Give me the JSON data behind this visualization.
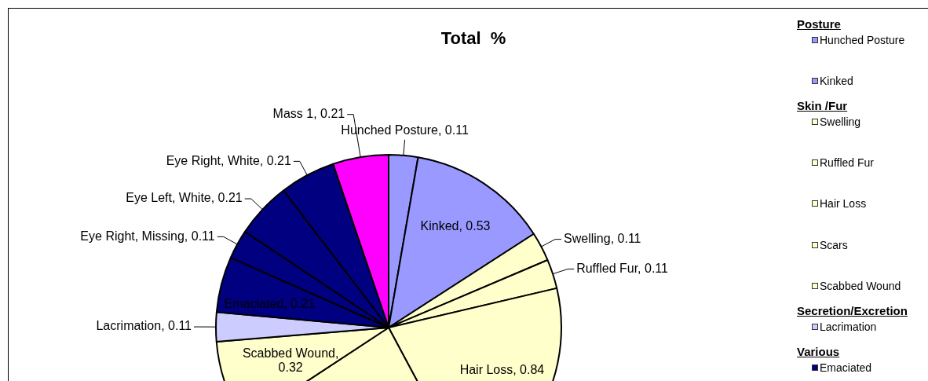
{
  "chart_data": {
    "type": "pie",
    "title": "Total  %",
    "categories": [
      "Hunched Posture",
      "Kinked",
      "Swelling",
      "Ruffled Fur",
      "Hair Loss",
      "Scars",
      "Scabbed Wound",
      "Lacrimation",
      "Emaciated",
      "Eye Right, Missing",
      "Eye Left, White",
      "Eye Right, White",
      "Mass 1"
    ],
    "values": [
      0.11,
      0.53,
      0.11,
      0.11,
      0.84,
      0.95,
      0.32,
      0.11,
      0.21,
      0.11,
      0.21,
      0.21,
      0.21
    ],
    "colors": [
      "#9999ff",
      "#9999ff",
      "#ffffcc",
      "#ffffcc",
      "#ffffcc",
      "#ffffcc",
      "#ffffcc",
      "#ccccff",
      "#000080",
      "#000080",
      "#000080",
      "#000080",
      "#ff00ff"
    ],
    "value_labels": [
      ", 0.11",
      ", 0.53",
      ", 0.11",
      ", 0.11",
      ", 0.84",
      null,
      ", 0.32",
      ", 0.11",
      ", 0.21",
      ", 0.11",
      ", 0.21",
      ", 0.21",
      ", 0.21"
    ],
    "legend": "right",
    "annotations": [
      "Posture",
      "Skin /Fur",
      "Secretion/Excretion",
      "Various"
    ]
  }
}
